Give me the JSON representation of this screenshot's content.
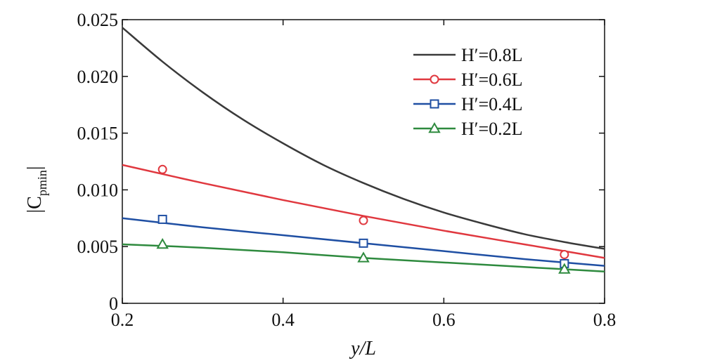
{
  "chart_data": {
    "type": "line",
    "xlabel": "y/L",
    "ylabel": "|C",
    "ylabel_subscript": "pmin",
    "xlim": [
      0.2,
      0.8
    ],
    "ylim": [
      0,
      0.025
    ],
    "x_ticks": [
      "0.2",
      "0.4",
      "0.6",
      "0.8"
    ],
    "y_ticks": [
      "0",
      "0.005",
      "0.010",
      "0.015",
      "0.020",
      "0.025"
    ],
    "grid": false,
    "legend_position": "top-right",
    "series": [
      {
        "name": "H′=0.8L",
        "color": "#3a3a3a",
        "marker": "none",
        "curve_x": [
          0.2,
          0.25,
          0.3,
          0.35,
          0.4,
          0.45,
          0.5,
          0.55,
          0.6,
          0.65,
          0.7,
          0.75,
          0.8
        ],
        "curve_y": [
          0.0243,
          0.0213,
          0.0186,
          0.0162,
          0.0141,
          0.0122,
          0.0106,
          0.0092,
          0.008,
          0.007,
          0.0061,
          0.0054,
          0.0048
        ],
        "points_x": [],
        "points_y": []
      },
      {
        "name": "H′=0.6L",
        "color": "#e0383f",
        "marker": "circle",
        "curve_x": [
          0.2,
          0.3,
          0.4,
          0.5,
          0.6,
          0.7,
          0.8
        ],
        "curve_y": [
          0.0122,
          0.0106,
          0.0091,
          0.0077,
          0.0064,
          0.0052,
          0.004
        ],
        "points_x": [
          0.25,
          0.5,
          0.75
        ],
        "points_y": [
          0.0118,
          0.0073,
          0.0043
        ]
      },
      {
        "name": "H′=0.4L",
        "color": "#1f4fa3",
        "marker": "square",
        "curve_x": [
          0.2,
          0.3,
          0.4,
          0.5,
          0.6,
          0.7,
          0.8
        ],
        "curve_y": [
          0.0075,
          0.0067,
          0.006,
          0.0053,
          0.0046,
          0.0039,
          0.0033
        ],
        "points_x": [
          0.25,
          0.5,
          0.75
        ],
        "points_y": [
          0.0074,
          0.0053,
          0.0035
        ]
      },
      {
        "name": "H′=0.2L",
        "color": "#2e8a3e",
        "marker": "triangle",
        "curve_x": [
          0.2,
          0.3,
          0.4,
          0.5,
          0.6,
          0.7,
          0.8
        ],
        "curve_y": [
          0.0052,
          0.0049,
          0.0045,
          0.004,
          0.0036,
          0.0032,
          0.0028
        ],
        "points_x": [
          0.25,
          0.5,
          0.75
        ],
        "points_y": [
          0.0052,
          0.004,
          0.003
        ]
      }
    ]
  }
}
